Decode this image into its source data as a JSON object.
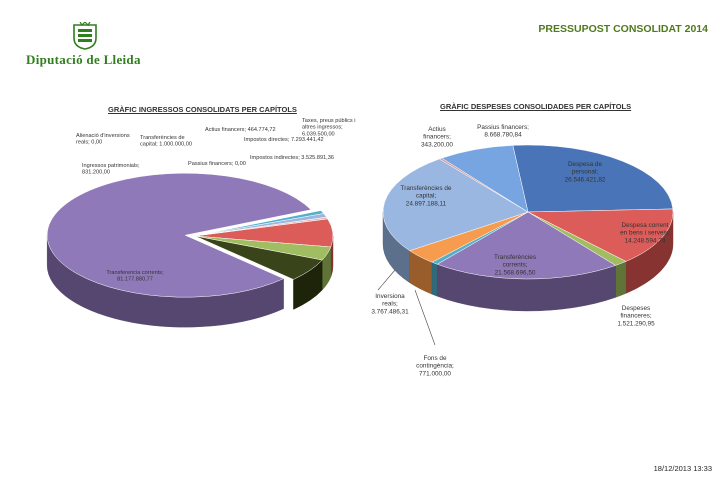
{
  "header": {
    "org_name": "Diputació de Lleida",
    "report_title": "PRESSUPOST CONSOLIDAT 2014",
    "logo_icon": "coat-of-arms-icon"
  },
  "colors": {
    "brand_green": "#2f7f1e",
    "purple": "#8a72b4",
    "blue": "#4a7ec6",
    "red": "#d9534f",
    "green": "#9bbb59",
    "light_blue": "#95b3e0",
    "orange": "#f79646",
    "teal": "#4bacc6"
  },
  "footer": {
    "timestamp": "18/12/2013 13:33"
  },
  "chart_data": [
    {
      "type": "pie",
      "title": "GRÀFIC INGRESSOS CONSOLIDATS PER CAPÍTOLS",
      "slices": [
        {
          "label": "Impostos directes",
          "value": 7293441.42,
          "value_text": "7.293.441,42",
          "color": "#d9534f"
        },
        {
          "label": "Impostos indirectes",
          "value": 3525891.36,
          "value_text": "3.525.891,36",
          "color": "#9bbb59"
        },
        {
          "label": "Taxes, preus públics i altres ingressos",
          "value": 6039500.0,
          "value_text": "6.039.500,00",
          "color": "#2f3a0f"
        },
        {
          "label": "Transferencia corrents",
          "value": 81177880.77,
          "value_text": "81.177.880,77",
          "color": "#8a72b4"
        },
        {
          "label": "Ingressos patrimonials",
          "value": 831200.0,
          "value_text": "831.200,00",
          "color": "#4bacc6"
        },
        {
          "label": "Alienació d'inversions reals",
          "value": 0.0,
          "value_text": "0,00",
          "color": "#f79646"
        },
        {
          "label": "Transferències de capital",
          "value": 1000000.0,
          "value_text": "1.000.000,00",
          "color": "#95b3e0"
        },
        {
          "label": "Actius financers",
          "value": 464774.72,
          "value_text": "464.774,72",
          "color": "#e6b9b8"
        },
        {
          "label": "Passius financers",
          "value": 0.0,
          "value_text": "0,00",
          "color": "#4a7ec6"
        }
      ]
    },
    {
      "type": "pie",
      "title": "GRÀFIC DESPESES CONSOLIDADES PER CAPÍTOLS",
      "slices": [
        {
          "label": "Despesa de personal",
          "value": 26546421.82,
          "value_text": "26.546.421,82",
          "color": "#3f6db3"
        },
        {
          "label": "Despesa corrent en bens i serveis",
          "value": 14248594.74,
          "value_text": "14.248.594,74",
          "color": "#d9534f"
        },
        {
          "label": "Despeses financeres",
          "value": 1521290.95,
          "value_text": "1.521.290,95",
          "color": "#9bbb59"
        },
        {
          "label": "Transferències corrents",
          "value": 21568696.5,
          "value_text": "21.568.696,50",
          "color": "#8a72b4"
        },
        {
          "label": "Fons de contingència",
          "value": 771000.0,
          "value_text": "771.000,00",
          "color": "#4bacc6"
        },
        {
          "label": "Inversiona reals",
          "value": 3767486.31,
          "value_text": "3.767.486,31",
          "color": "#f79646"
        },
        {
          "label": "Transferències de capital",
          "value": 24897188.11,
          "value_text": "24.897.188,11",
          "color": "#95b3e0"
        },
        {
          "label": "Actius financers",
          "value": 343200.0,
          "value_text": "343.200,00",
          "color": "#d99694"
        },
        {
          "label": "Passius financers",
          "value": 8668780.84,
          "value_text": "8.668.780,84",
          "color": "#6fa0df"
        }
      ]
    }
  ]
}
